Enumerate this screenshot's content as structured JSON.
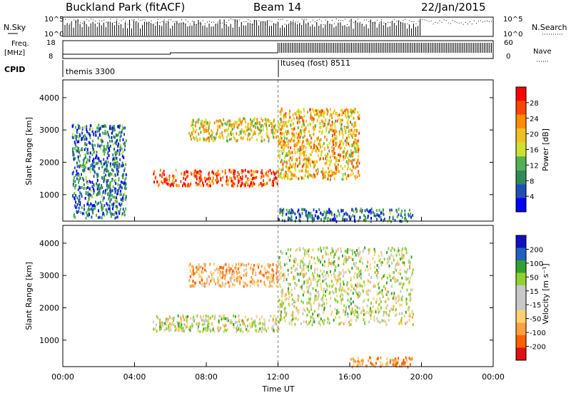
{
  "header": {
    "title": "Buckland Park (fitACF)",
    "beam": "Beam 14",
    "date": "22/Jan/2015"
  },
  "status_panels": {
    "nsky_label": "N.Sky",
    "nsearch_label": "N.Search",
    "noise_ticks": [
      "10^5",
      "10^0"
    ],
    "freq_label_1": "Freq.",
    "freq_label_2": "[MHz]",
    "freq_ticks": [
      "18",
      "8"
    ],
    "nave_ticks": [
      "60",
      "0"
    ],
    "nave_label": "Nave",
    "cpid_label": "CPID",
    "programs": [
      {
        "name": "themis 3300",
        "start_hour": 0,
        "end_hour": 12
      },
      {
        "name": "ltuseq (fost) 8511",
        "start_hour": 12,
        "end_hour": 24
      }
    ]
  },
  "colors": {
    "power_scale": [
      "#0000ff",
      "#1f4fb4",
      "#2e8b57",
      "#52b152",
      "#cfe02a",
      "#f0c020",
      "#ff8c00",
      "#ff4500",
      "#ff0000"
    ],
    "velocity_scale": [
      "#e01010",
      "#ff6000",
      "#ffa040",
      "#ffd070",
      "#c8c8c8",
      "#c8c8c8",
      "#90d030",
      "#30a030",
      "#2060c0",
      "#1010c0"
    ]
  },
  "chart_data": [
    {
      "type": "heatmap",
      "name": "power-panel",
      "xlabel": "",
      "ylabel": "Slant Range [km]",
      "x_ticks": [
        "00:00",
        "04:00",
        "08:00",
        "12:00",
        "16:00",
        "20:00",
        "00:00"
      ],
      "x_range_hours": [
        0,
        24
      ],
      "y_ticks": [
        1000,
        2000,
        3000,
        4000
      ],
      "ylim": [
        180,
        4550
      ],
      "colorbar": {
        "label": "Power [dB]",
        "ticks": [
          4,
          8,
          12,
          16,
          20,
          24,
          28
        ],
        "range": [
          0,
          32
        ]
      },
      "features": [
        {
          "hours": [
            0.5,
            3.5
          ],
          "range_km": [
            300,
            3200
          ],
          "value_db": 8
        },
        {
          "hours": [
            5,
            12
          ],
          "range_km": [
            1300,
            1800
          ],
          "value_db": 27
        },
        {
          "hours": [
            7,
            12
          ],
          "range_km": [
            2700,
            3400
          ],
          "value_db": 18
        },
        {
          "hours": [
            12,
            16.5
          ],
          "range_km": [
            1500,
            3700
          ],
          "value_db": 20
        },
        {
          "hours": [
            12,
            19.5
          ],
          "range_km": [
            200,
            600
          ],
          "value_db": 8
        }
      ]
    },
    {
      "type": "heatmap",
      "name": "velocity-panel",
      "xlabel": "Time UT",
      "ylabel": "Slant Range [km]",
      "x_ticks": [
        "00:00",
        "04:00",
        "08:00",
        "12:00",
        "16:00",
        "20:00",
        "00:00"
      ],
      "x_range_hours": [
        0,
        24
      ],
      "y_ticks": [
        1000,
        2000,
        3000,
        4000
      ],
      "ylim": [
        180,
        4550
      ],
      "colorbar": {
        "label": "Velocity [m s⁻¹]",
        "ticks": [
          200,
          100,
          50,
          15,
          -15,
          -50,
          -100,
          -200
        ],
        "range": [
          -250,
          250
        ]
      },
      "features": [
        {
          "hours": [
            5,
            12
          ],
          "range_km": [
            1300,
            1800
          ],
          "value_ms": 0
        },
        {
          "hours": [
            7,
            12
          ],
          "range_km": [
            2700,
            3400
          ],
          "value_ms": -60
        },
        {
          "hours": [
            12,
            19.5
          ],
          "range_km": [
            1500,
            3900
          ],
          "value_ms": 5
        },
        {
          "hours": [
            16,
            19.5
          ],
          "range_km": [
            200,
            500
          ],
          "value_ms": -80
        }
      ]
    }
  ]
}
